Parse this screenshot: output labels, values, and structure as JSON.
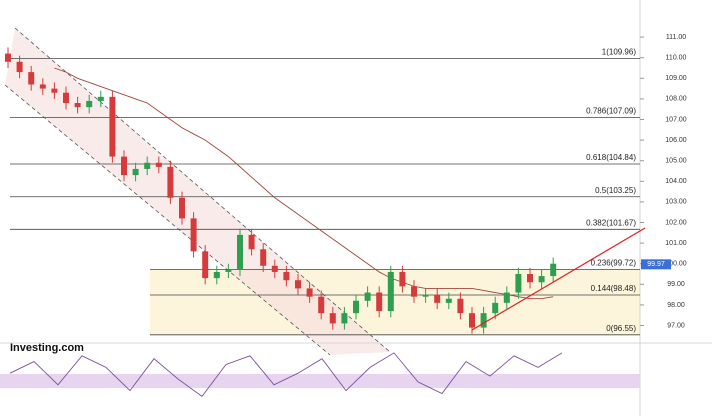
{
  "chart_data": {
    "type": "candlestick",
    "brand": "Investing.com",
    "ylim": [
      96.2,
      112.8
    ],
    "yticks": [
      {
        "value": 111,
        "label": "111.00"
      },
      {
        "value": 110,
        "label": "110.00"
      },
      {
        "value": 109,
        "label": "109.00"
      },
      {
        "value": 108,
        "label": "108.00"
      },
      {
        "value": 107,
        "label": "107.00"
      },
      {
        "value": 106,
        "label": "106.00"
      },
      {
        "value": 105,
        "label": "105.00"
      },
      {
        "value": 104,
        "label": "104.00"
      },
      {
        "value": 103,
        "label": "103.00"
      },
      {
        "value": 102,
        "label": "102.00"
      },
      {
        "value": 101,
        "label": "101.00"
      },
      {
        "value": 100,
        "label": "100.00"
      },
      {
        "value": 99,
        "label": "99.00"
      },
      {
        "value": 98,
        "label": "98.00"
      },
      {
        "value": 97,
        "label": "97.00"
      }
    ],
    "up_color": "#2e9e4f",
    "down_color": "#d63b3b",
    "open": [
      110.2,
      109.8,
      109.3,
      108.7,
      108.5,
      108.3,
      107.8,
      107.6,
      107.9,
      108.1,
      105.2,
      104.3,
      104.6,
      104.9,
      104.7,
      103.2,
      102.2,
      100.6,
      99.3,
      99.6,
      99.7,
      101.4,
      100.7,
      99.9,
      99.6,
      99.2,
      98.8,
      98.4,
      97.6,
      97.1,
      97.6,
      98.2,
      98.6,
      97.7,
      99.6,
      98.9,
      98.4,
      98.5,
      98.1,
      98.3,
      97.6,
      96.9,
      97.6,
      98.1,
      98.6,
      99.5,
      99.1,
      99.4
    ],
    "high": [
      110.5,
      110.1,
      109.6,
      109.0,
      108.8,
      108.6,
      108.1,
      108.2,
      108.4,
      108.4,
      105.5,
      104.9,
      105.2,
      105.2,
      105.0,
      103.5,
      102.5,
      100.9,
      99.9,
      100.0,
      101.7,
      101.7,
      101.0,
      100.2,
      99.9,
      99.5,
      99.1,
      98.7,
      97.9,
      97.9,
      98.5,
      98.9,
      98.9,
      99.9,
      99.9,
      99.2,
      98.8,
      98.8,
      98.6,
      98.6,
      97.9,
      97.9,
      98.4,
      98.9,
      99.8,
      99.8,
      99.7,
      100.3
    ],
    "low": [
      109.5,
      109.0,
      108.4,
      108.2,
      108.0,
      107.5,
      107.3,
      107.3,
      107.6,
      104.9,
      104.0,
      104.0,
      104.3,
      104.4,
      102.9,
      101.9,
      100.3,
      99.0,
      99.0,
      99.3,
      99.4,
      100.4,
      99.6,
      99.3,
      98.9,
      98.5,
      98.1,
      97.3,
      96.8,
      96.8,
      97.3,
      97.9,
      97.4,
      97.4,
      98.6,
      98.1,
      98.1,
      97.8,
      97.8,
      97.3,
      96.6,
      96.6,
      97.3,
      97.8,
      98.3,
      98.8,
      98.8,
      99.1
    ],
    "close": [
      109.8,
      109.3,
      108.7,
      108.5,
      108.3,
      107.8,
      107.6,
      107.9,
      108.1,
      105.2,
      104.3,
      104.6,
      104.9,
      104.7,
      103.2,
      102.2,
      100.6,
      99.3,
      99.6,
      99.7,
      101.4,
      100.7,
      99.9,
      99.6,
      99.2,
      98.8,
      98.4,
      97.6,
      97.1,
      97.6,
      98.2,
      98.6,
      97.7,
      99.6,
      98.9,
      98.4,
      98.5,
      98.1,
      98.3,
      97.6,
      96.9,
      97.6,
      98.1,
      98.6,
      99.5,
      99.1,
      99.4,
      100.0
    ],
    "moving_average": {
      "color": "#a0453a",
      "values": [
        null,
        null,
        null,
        null,
        109.5,
        109.3,
        109.0,
        108.8,
        108.6,
        108.4,
        108.2,
        108.0,
        107.8,
        107.4,
        107.0,
        106.6,
        106.3,
        106.0,
        105.6,
        105.2,
        104.7,
        104.2,
        103.7,
        103.2,
        102.8,
        102.4,
        102.0,
        101.6,
        101.2,
        100.8,
        100.4,
        100.0,
        99.6,
        99.3,
        99.1,
        98.9,
        98.8,
        98.8,
        98.8,
        98.8,
        98.8,
        98.7,
        98.6,
        98.5,
        98.4,
        98.3,
        98.3,
        98.4
      ]
    },
    "fib_levels": [
      {
        "label": "1(109.96)",
        "value": 109.96
      },
      {
        "label": "0.786(107.09)",
        "value": 107.09
      },
      {
        "label": "0.618(104.84)",
        "value": 104.84
      },
      {
        "label": "0.5(103.25)",
        "value": 103.25
      },
      {
        "label": "0.382(101.67)",
        "value": 101.67
      },
      {
        "label": "0.236(99.72)",
        "value": 99.72
      },
      {
        "label": "0.144(98.48)",
        "value": 98.48
      },
      {
        "label": "0(96.55)",
        "value": 96.55
      }
    ],
    "last_price": {
      "value": 99.97,
      "label": "99.97"
    },
    "oscillator": {
      "color": "#7b4fa0",
      "ylim": [
        0,
        100
      ],
      "values": [
        60,
        80,
        40,
        90,
        70,
        30,
        85,
        50,
        20,
        75,
        90,
        40,
        60,
        85,
        30,
        70,
        95,
        45,
        25,
        80,
        55,
        90,
        70,
        95
      ]
    }
  }
}
